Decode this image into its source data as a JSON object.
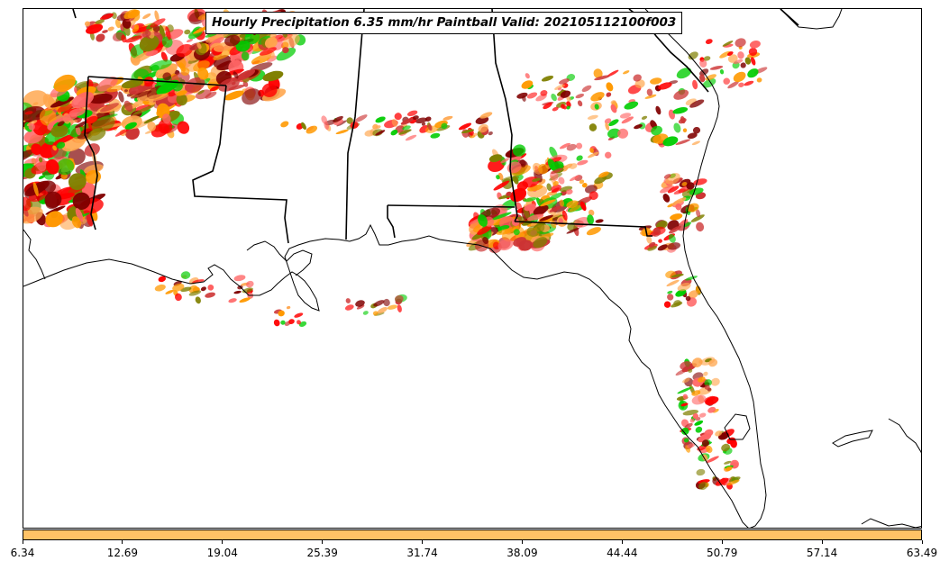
{
  "title": "Hourly Precipitation 6.35 mm/hr Paintball Valid: 202105112100f003",
  "colors": {
    "colorbar_fill": "#ffc266",
    "coast_lines": "#000000",
    "precip_palette": [
      "#ff9900",
      "#ff0000",
      "#00cc00",
      "#800000",
      "#808000",
      "#ff6666",
      "#ffa64d",
      "#cc3333"
    ]
  },
  "colorbar": {
    "range": [
      6.34,
      63.49
    ],
    "tick_labels": [
      "6.34",
      "12.69",
      "19.04",
      "25.39",
      "31.74",
      "38.09",
      "44.44",
      "50.79",
      "57.14",
      "63.49"
    ]
  }
}
